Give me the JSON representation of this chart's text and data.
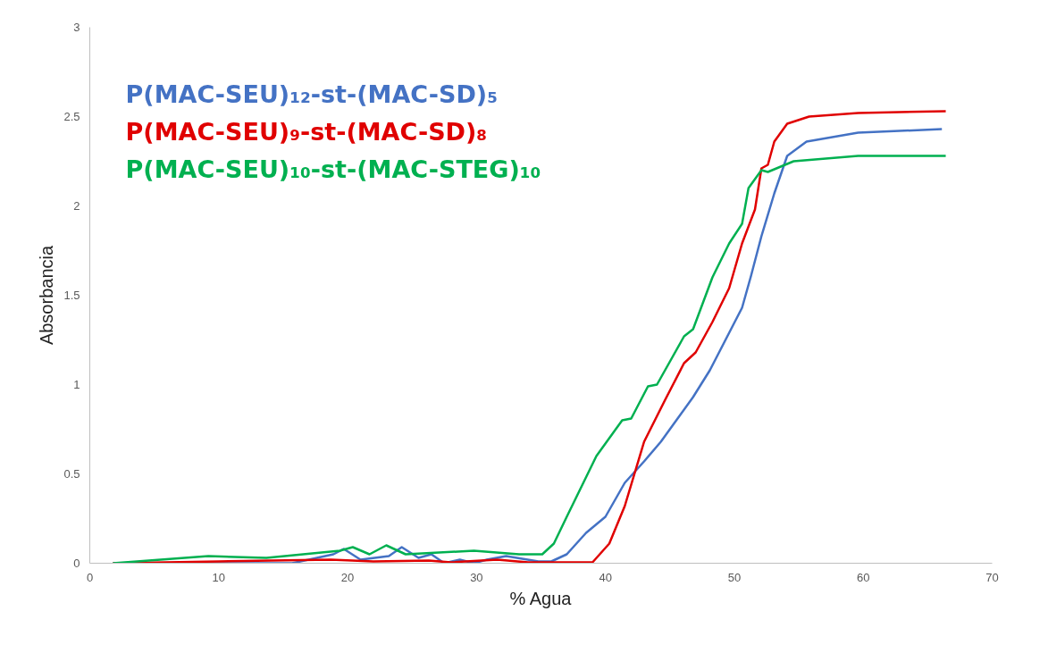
{
  "chart_data": {
    "type": "line",
    "xlabel": "% Agua",
    "ylabel": "Absorbancia",
    "xlim": [
      0,
      70
    ],
    "xticks": [
      0,
      10,
      20,
      30,
      40,
      50,
      60,
      70
    ],
    "ylim": [
      0,
      3
    ],
    "yticks": [
      0,
      0.5,
      1,
      1.5,
      2,
      2.5,
      3
    ],
    "grid": false,
    "legend": "top left",
    "line_style": "solid",
    "marker": "none",
    "series": [
      {
        "name": "P(MAC-SEU)₁₂-st-(MAC-SD)₅",
        "color": "#4472c4",
        "x": [
          1.8,
          13.2,
          15.7,
          18.9,
          19.7,
          21.0,
          23.2,
          24.2,
          25.5,
          26.5,
          27.5,
          28.7,
          29.8,
          30.8,
          32.3,
          34.8,
          35.8,
          37,
          38.5,
          40.0,
          41.5,
          43.0,
          44.3,
          45.8,
          46.8,
          48.1,
          49.6,
          50.6,
          51.3,
          52.1,
          53.1,
          54.1,
          55.6,
          59.6,
          66.1
        ],
        "values": [
          0,
          0,
          0,
          0.05,
          0.08,
          0.02,
          0.04,
          0.09,
          0.03,
          0.05,
          0,
          0.02,
          0,
          0.02,
          0.04,
          0.01,
          0.01,
          0.05,
          0.17,
          0.26,
          0.45,
          0.57,
          0.68,
          0.83,
          0.93,
          1.08,
          1.29,
          1.43,
          1.61,
          1.83,
          2.07,
          2.28,
          2.36,
          2.41,
          2.43
        ]
      },
      {
        "name": "P(MAC-SEU)₉-st-(MAC-SD)₈",
        "color": "#e00000",
        "x": [
          1.8,
          10,
          18.7,
          22,
          26.3,
          28,
          31.6,
          34,
          39.0,
          40.3,
          41.5,
          43.0,
          44.6,
          46.1,
          47.0,
          48.3,
          49.6,
          50.6,
          51.6,
          52.1,
          52.6,
          53.1,
          54.1,
          55.8,
          59.6,
          66.4
        ],
        "values": [
          0,
          0.01,
          0.02,
          0.01,
          0.015,
          0.005,
          0.02,
          0.005,
          0.005,
          0.11,
          0.32,
          0.68,
          0.91,
          1.12,
          1.18,
          1.35,
          1.54,
          1.79,
          1.98,
          2.21,
          2.23,
          2.36,
          2.46,
          2.5,
          2.52,
          2.53
        ]
      },
      {
        "name": "P(MAC-SEU)₁₀-st-(MAC-STEG)₁₀",
        "color": "#00b050",
        "x": [
          1.8,
          9.2,
          13.7,
          19.4,
          20.4,
          21.7,
          23.0,
          24.5,
          29.8,
          33.3,
          35.1,
          36,
          37,
          39.3,
          41.3,
          42,
          43.3,
          44.0,
          46.1,
          46.8,
          48.3,
          49.6,
          50.6,
          51.1,
          52.1,
          52.6,
          54.6,
          59.6,
          66.4
        ],
        "values": [
          0,
          0.04,
          0.03,
          0.07,
          0.09,
          0.05,
          0.1,
          0.05,
          0.07,
          0.05,
          0.05,
          0.11,
          0.26,
          0.6,
          0.8,
          0.81,
          0.99,
          1.0,
          1.27,
          1.31,
          1.6,
          1.79,
          1.9,
          2.1,
          2.2,
          2.19,
          2.25,
          2.28,
          2.28
        ]
      }
    ]
  }
}
